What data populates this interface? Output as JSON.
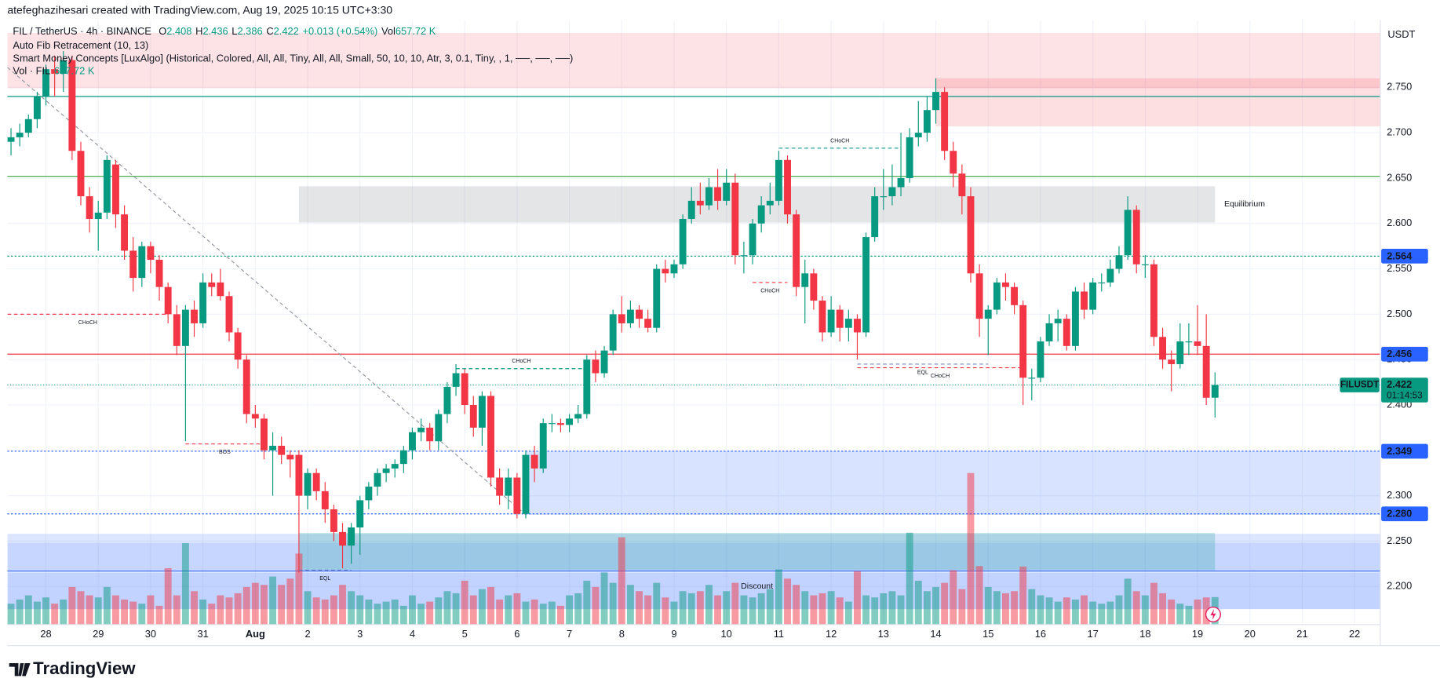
{
  "header": {
    "credit": "atefeghazihesari created with TradingView.com, Aug 19, 2025 10:15 UTC+3:30"
  },
  "legend": {
    "symbol": "FIL / TetherUS · 4h · BINANCE",
    "fields": [
      {
        "key": "O",
        "value": "2.408"
      },
      {
        "key": "H",
        "value": "2.436"
      },
      {
        "key": "L",
        "value": "2.386"
      },
      {
        "key": "C",
        "value": "2.422"
      }
    ],
    "change": "+0.013 (+0.54%)",
    "volume_key": "Vol",
    "volume": "657.72 K",
    "indicators": [
      "Auto Fib Retracement (10, 13)",
      "Smart Money Concepts [LuxAlgo] (Historical, Colored, All, All, Tiny, All, All, Small, 50, 10, 10, Atr, 3, 0.1, Tiny, , 1, ──, ──, ──)"
    ],
    "volume_pane": {
      "name": "Vol · FIL",
      "value": "657.72 K"
    }
  },
  "chart_data": {
    "type": "candlestick",
    "currency": "USDT",
    "up_color": "#089981",
    "down_color": "#f23645",
    "ylim": [
      2.158,
      2.824
    ],
    "yticks": [
      {
        "value": 2.2,
        "label": "2.200"
      },
      {
        "value": 2.25,
        "label": "2.250"
      },
      {
        "value": 2.3,
        "label": "2.300"
      },
      {
        "value": 2.35,
        "label": "2.350"
      },
      {
        "value": 2.4,
        "label": "2.400"
      },
      {
        "value": 2.45,
        "label": "2.450"
      },
      {
        "value": 2.5,
        "label": "2.500"
      },
      {
        "value": 2.55,
        "label": "2.550"
      },
      {
        "value": 2.6,
        "label": "2.600"
      },
      {
        "value": 2.65,
        "label": "2.650"
      },
      {
        "value": 2.7,
        "label": "2.700"
      },
      {
        "value": 2.75,
        "label": "2.750"
      }
    ],
    "xlim": [
      -0.4,
      157
    ],
    "xticks": [
      {
        "value": 4,
        "label": "28"
      },
      {
        "value": 10,
        "label": "29"
      },
      {
        "value": 16,
        "label": "30"
      },
      {
        "value": 22,
        "label": "31"
      },
      {
        "value": 28,
        "label": "Aug"
      },
      {
        "value": 34,
        "label": "2"
      },
      {
        "value": 40,
        "label": "3"
      },
      {
        "value": 46,
        "label": "4"
      },
      {
        "value": 52,
        "label": "5"
      },
      {
        "value": 58,
        "label": "6"
      },
      {
        "value": 64,
        "label": "7"
      },
      {
        "value": 70,
        "label": "8"
      },
      {
        "value": 76,
        "label": "9"
      },
      {
        "value": 82,
        "label": "10"
      },
      {
        "value": 88,
        "label": "11"
      },
      {
        "value": 94,
        "label": "12"
      },
      {
        "value": 100,
        "label": "13"
      },
      {
        "value": 106,
        "label": "14"
      },
      {
        "value": 112,
        "label": "15"
      },
      {
        "value": 118,
        "label": "16"
      },
      {
        "value": 124,
        "label": "17"
      },
      {
        "value": 130,
        "label": "18"
      },
      {
        "value": 136,
        "label": "19"
      },
      {
        "value": 142,
        "label": "20"
      },
      {
        "value": 148,
        "label": "21"
      },
      {
        "value": 154,
        "label": "22"
      }
    ],
    "grid": true,
    "candles": [
      [
        2.69,
        2.705,
        2.675,
        2.695
      ],
      [
        2.695,
        2.71,
        2.685,
        2.7
      ],
      [
        2.7,
        2.72,
        2.695,
        2.715
      ],
      [
        2.715,
        2.745,
        2.705,
        2.74
      ],
      [
        2.74,
        2.775,
        2.73,
        2.77
      ],
      [
        2.77,
        2.785,
        2.74,
        2.765
      ],
      [
        2.765,
        2.79,
        2.745,
        2.78
      ],
      [
        2.78,
        2.785,
        2.67,
        2.68
      ],
      [
        2.68,
        2.69,
        2.62,
        2.63
      ],
      [
        2.63,
        2.64,
        2.59,
        2.605
      ],
      [
        2.605,
        2.625,
        2.57,
        2.612
      ],
      [
        2.612,
        2.675,
        2.605,
        2.67
      ],
      [
        2.665,
        2.67,
        2.595,
        2.61
      ],
      [
        2.61,
        2.62,
        2.56,
        2.57
      ],
      [
        2.57,
        2.585,
        2.525,
        2.54
      ],
      [
        2.54,
        2.58,
        2.53,
        2.575
      ],
      [
        2.575,
        2.58,
        2.545,
        2.56
      ],
      [
        2.56,
        2.565,
        2.515,
        2.53
      ],
      [
        2.53,
        2.535,
        2.49,
        2.5
      ],
      [
        2.5,
        2.51,
        2.455,
        2.465
      ],
      [
        2.465,
        2.51,
        2.36,
        2.505
      ],
      [
        2.505,
        2.515,
        2.475,
        2.49
      ],
      [
        2.49,
        2.545,
        2.485,
        2.535
      ],
      [
        2.535,
        2.545,
        2.52,
        2.53
      ],
      [
        2.535,
        2.55,
        2.515,
        2.52
      ],
      [
        2.52,
        2.525,
        2.47,
        2.48
      ],
      [
        2.48,
        2.485,
        2.44,
        2.45
      ],
      [
        2.45,
        2.455,
        2.38,
        2.39
      ],
      [
        2.39,
        2.4,
        2.375,
        2.385
      ],
      [
        2.385,
        2.39,
        2.34,
        2.35
      ],
      [
        2.35,
        2.37,
        2.3,
        2.355
      ],
      [
        2.355,
        2.365,
        2.335,
        2.345
      ],
      [
        2.345,
        2.35,
        2.32,
        2.34
      ],
      [
        2.345,
        2.35,
        2.215,
        2.3
      ],
      [
        2.3,
        2.33,
        2.285,
        2.325
      ],
      [
        2.325,
        2.33,
        2.295,
        2.305
      ],
      [
        2.305,
        2.315,
        2.27,
        2.285
      ],
      [
        2.285,
        2.29,
        2.25,
        2.26
      ],
      [
        2.26,
        2.27,
        2.22,
        2.245
      ],
      [
        2.245,
        2.27,
        2.225,
        2.265
      ],
      [
        2.265,
        2.3,
        2.235,
        2.295
      ],
      [
        2.295,
        2.315,
        2.285,
        2.31
      ],
      [
        2.31,
        2.33,
        2.3,
        2.325
      ],
      [
        2.325,
        2.335,
        2.315,
        2.33
      ],
      [
        2.33,
        2.34,
        2.32,
        2.335
      ],
      [
        2.335,
        2.355,
        2.325,
        2.35
      ],
      [
        2.35,
        2.375,
        2.34,
        2.37
      ],
      [
        2.37,
        2.385,
        2.36,
        2.375
      ],
      [
        2.375,
        2.38,
        2.35,
        2.36
      ],
      [
        2.36,
        2.395,
        2.35,
        2.39
      ],
      [
        2.39,
        2.425,
        2.38,
        2.42
      ],
      [
        2.42,
        2.445,
        2.41,
        2.435
      ],
      [
        2.435,
        2.44,
        2.39,
        2.4
      ],
      [
        2.4,
        2.41,
        2.365,
        2.375
      ],
      [
        2.375,
        2.415,
        2.355,
        2.41
      ],
      [
        2.41,
        2.415,
        2.31,
        2.32
      ],
      [
        2.32,
        2.33,
        2.29,
        2.3
      ],
      [
        2.3,
        2.33,
        2.285,
        2.32
      ],
      [
        2.32,
        2.325,
        2.275,
        2.28
      ],
      [
        2.28,
        2.35,
        2.275,
        2.345
      ],
      [
        2.345,
        2.355,
        2.315,
        2.33
      ],
      [
        2.33,
        2.385,
        2.325,
        2.38
      ],
      [
        2.38,
        2.39,
        2.37,
        2.38
      ],
      [
        2.38,
        2.385,
        2.37,
        2.378
      ],
      [
        2.378,
        2.39,
        2.37,
        2.385
      ],
      [
        2.385,
        2.4,
        2.38,
        2.39
      ],
      [
        2.39,
        2.455,
        2.385,
        2.45
      ],
      [
        2.45,
        2.46,
        2.425,
        2.435
      ],
      [
        2.435,
        2.465,
        2.43,
        2.46
      ],
      [
        2.46,
        2.505,
        2.455,
        2.5
      ],
      [
        2.5,
        2.52,
        2.48,
        2.49
      ],
      [
        2.49,
        2.515,
        2.485,
        2.505
      ],
      [
        2.505,
        2.51,
        2.485,
        2.495
      ],
      [
        2.495,
        2.505,
        2.48,
        2.485
      ],
      [
        2.485,
        2.555,
        2.48,
        2.55
      ],
      [
        2.55,
        2.56,
        2.535,
        2.545
      ],
      [
        2.545,
        2.56,
        2.54,
        2.555
      ],
      [
        2.555,
        2.61,
        2.55,
        2.605
      ],
      [
        2.605,
        2.64,
        2.6,
        2.625
      ],
      [
        2.625,
        2.645,
        2.61,
        2.62
      ],
      [
        2.62,
        2.65,
        2.615,
        2.64
      ],
      [
        2.64,
        2.66,
        2.615,
        2.625
      ],
      [
        2.625,
        2.66,
        2.62,
        2.645
      ],
      [
        2.645,
        2.655,
        2.555,
        2.565
      ],
      [
        2.565,
        2.58,
        2.545,
        2.565
      ],
      [
        2.565,
        2.605,
        2.555,
        2.6
      ],
      [
        2.6,
        2.63,
        2.59,
        2.62
      ],
      [
        2.62,
        2.645,
        2.61,
        2.625
      ],
      [
        2.625,
        2.68,
        2.62,
        2.67
      ],
      [
        2.67,
        2.675,
        2.6,
        2.61
      ],
      [
        2.61,
        2.615,
        2.52,
        2.53
      ],
      [
        2.53,
        2.56,
        2.49,
        2.545
      ],
      [
        2.545,
        2.55,
        2.505,
        2.515
      ],
      [
        2.515,
        2.52,
        2.47,
        2.48
      ],
      [
        2.48,
        2.52,
        2.475,
        2.505
      ],
      [
        2.505,
        2.51,
        2.47,
        2.485
      ],
      [
        2.485,
        2.505,
        2.47,
        2.495
      ],
      [
        2.495,
        2.5,
        2.45,
        2.48
      ],
      [
        2.48,
        2.59,
        2.475,
        2.585
      ],
      [
        2.585,
        2.64,
        2.58,
        2.63
      ],
      [
        2.63,
        2.66,
        2.615,
        2.63
      ],
      [
        2.63,
        2.665,
        2.62,
        2.64
      ],
      [
        2.64,
        2.7,
        2.63,
        2.65
      ],
      [
        2.65,
        2.705,
        2.645,
        2.695
      ],
      [
        2.695,
        2.735,
        2.685,
        2.7
      ],
      [
        2.7,
        2.74,
        2.69,
        2.725
      ],
      [
        2.725,
        2.76,
        2.71,
        2.745
      ],
      [
        2.745,
        2.75,
        2.67,
        2.68
      ],
      [
        2.68,
        2.69,
        2.64,
        2.655
      ],
      [
        2.655,
        2.665,
        2.61,
        2.63
      ],
      [
        2.63,
        2.64,
        2.535,
        2.545
      ],
      [
        2.545,
        2.555,
        2.475,
        2.495
      ],
      [
        2.495,
        2.51,
        2.455,
        2.505
      ],
      [
        2.505,
        2.54,
        2.5,
        2.535
      ],
      [
        2.535,
        2.545,
        2.515,
        2.53
      ],
      [
        2.53,
        2.535,
        2.5,
        2.51
      ],
      [
        2.51,
        2.515,
        2.4,
        2.43
      ],
      [
        2.43,
        2.44,
        2.405,
        2.43
      ],
      [
        2.43,
        2.475,
        2.425,
        2.47
      ],
      [
        2.47,
        2.5,
        2.465,
        2.49
      ],
      [
        2.49,
        2.505,
        2.47,
        2.495
      ],
      [
        2.495,
        2.5,
        2.46,
        2.465
      ],
      [
        2.465,
        2.53,
        2.46,
        2.525
      ],
      [
        2.525,
        2.535,
        2.495,
        2.505
      ],
      [
        2.505,
        2.54,
        2.5,
        2.535
      ],
      [
        2.535,
        2.545,
        2.525,
        2.535
      ],
      [
        2.535,
        2.56,
        2.53,
        2.55
      ],
      [
        2.55,
        2.575,
        2.545,
        2.565
      ],
      [
        2.565,
        2.63,
        2.56,
        2.615
      ],
      [
        2.615,
        2.62,
        2.545,
        2.555
      ],
      [
        2.555,
        2.565,
        2.54,
        2.555
      ],
      [
        2.555,
        2.56,
        2.465,
        2.475
      ],
      [
        2.475,
        2.485,
        2.44,
        2.45
      ],
      [
        2.45,
        2.46,
        2.415,
        2.445
      ],
      [
        2.445,
        2.49,
        2.44,
        2.47
      ],
      [
        2.47,
        2.49,
        2.455,
        2.47
      ],
      [
        2.47,
        2.51,
        2.455,
        2.465
      ],
      [
        2.465,
        2.5,
        2.4,
        2.408
      ],
      [
        2.408,
        2.436,
        2.386,
        2.422
      ]
    ],
    "volume": [
      500,
      600,
      700,
      550,
      650,
      500,
      600,
      900,
      800,
      700,
      650,
      900,
      700,
      600,
      550,
      500,
      700,
      450,
      1350,
      700,
      1950,
      800,
      600,
      500,
      700,
      650,
      750,
      900,
      1000,
      950,
      1150,
      950,
      1100,
      1700,
      800,
      650,
      600,
      700,
      950,
      800,
      700,
      600,
      500,
      550,
      600,
      450,
      700,
      500,
      550,
      650,
      800,
      750,
      1050,
      700,
      850,
      900,
      600,
      700,
      750,
      550,
      600,
      500,
      550,
      450,
      700,
      750,
      1050,
      900,
      1250,
      1000,
      2090,
      950,
      800,
      700,
      1000,
      650,
      550,
      800,
      750,
      800,
      950,
      700,
      800,
      1000,
      700,
      650,
      750,
      850,
      1320,
      1100,
      950,
      800,
      700,
      750,
      800,
      650,
      550,
      1280,
      700,
      650,
      750,
      800,
      700,
      2200,
      1050,
      800,
      900,
      1000,
      1300,
      850,
      3630,
      1400,
      900,
      800,
      750,
      800,
      1390,
      850,
      700,
      650,
      550,
      650,
      600,
      700,
      550,
      500,
      550,
      700,
      1100,
      800,
      700,
      1000,
      750,
      600,
      500,
      450,
      600,
      650,
      657.72
    ],
    "zones": [
      {
        "top": 2.81,
        "bottom": 2.749,
        "from": -0.4,
        "to": 157,
        "color": "rgba(242,54,69,0.14)"
      },
      {
        "top": 2.76,
        "bottom": 2.707,
        "from": 106,
        "to": 157,
        "color": "rgba(242,54,69,0.16)"
      },
      {
        "top": 2.641,
        "bottom": 2.601,
        "from": 33,
        "to": 138,
        "color": "rgba(120,123,134,0.2)",
        "label": "Equilibrium"
      },
      {
        "top": 2.349,
        "bottom": 2.279,
        "from": 59,
        "to": 157,
        "color": "rgba(41,98,255,0.18)"
      },
      {
        "top": 2.258,
        "bottom": 2.175,
        "from": -0.4,
        "to": 157,
        "color": "rgba(41,98,255,0.16)"
      },
      {
        "top": 2.248,
        "bottom": 2.218,
        "from": -0.4,
        "to": 157,
        "color": "rgba(41,98,255,0.12)"
      },
      {
        "top": 2.215,
        "bottom": 2.175,
        "from": -0.4,
        "to": 157,
        "color": "rgba(41,98,255,0.14)"
      },
      {
        "top": 2.259,
        "bottom": 2.218,
        "from": 33,
        "to": 138,
        "color": "rgba(0,150,136,0.22)",
        "label": "Discount"
      }
    ],
    "lines": [
      {
        "price": 2.74,
        "color": "#089981",
        "dash": "none"
      },
      {
        "price": 2.652,
        "color": "#4caf50",
        "dash": "none"
      },
      {
        "price": 2.564,
        "color": "#089981",
        "dash": "2 2",
        "axis_color": "#2962ff"
      },
      {
        "price": 2.456,
        "color": "#f23645",
        "dash": "none",
        "axis_color": "#2962ff"
      },
      {
        "price": 2.349,
        "color": "#2962ff",
        "dash": "2 2",
        "axis_color": "#2962ff"
      },
      {
        "price": 2.28,
        "price_label": "2.280",
        "color": "#2962ff",
        "dash": "2 2",
        "axis_color": "#2962ff"
      },
      {
        "price": 2.217,
        "color": "#2962ff",
        "dash": "none"
      }
    ],
    "current": {
      "price": 2.422,
      "symbol": "FILUSDT",
      "countdown": "01:14:53",
      "color": "#089981"
    },
    "trendline": {
      "from": [
        -0.4,
        2.772
      ],
      "to": [
        59,
        2.279
      ],
      "color": "#9598a1"
    },
    "structures": [
      {
        "text": "CHoCH",
        "price": 2.5,
        "from": -0.4,
        "to": 18,
        "color": "#f23645"
      },
      {
        "text": "BOS",
        "price": 2.357,
        "from": 20,
        "to": 29,
        "color": "#f23645"
      },
      {
        "text": "CHoCH",
        "price": 2.44,
        "from": 51,
        "to": 66,
        "color": "#089981"
      },
      {
        "text": "CHoCH",
        "price": 2.535,
        "from": 85,
        "to": 89,
        "color": "#f23645"
      },
      {
        "text": "CHoCH",
        "price": 2.683,
        "from": 88,
        "to": 102,
        "color": "#089981"
      },
      {
        "text": "CHoCH",
        "price": 2.441,
        "from": 97,
        "to": 116,
        "color": "#f23645"
      },
      {
        "text": "EQL",
        "price": 2.445,
        "from": 97,
        "to": 112,
        "color": "#7b8ab8"
      },
      {
        "text": "EQL",
        "price": 2.218,
        "from": 33,
        "to": 39,
        "color": "#7b8ab8"
      }
    ]
  },
  "footer": {
    "brand": "TradingView"
  }
}
